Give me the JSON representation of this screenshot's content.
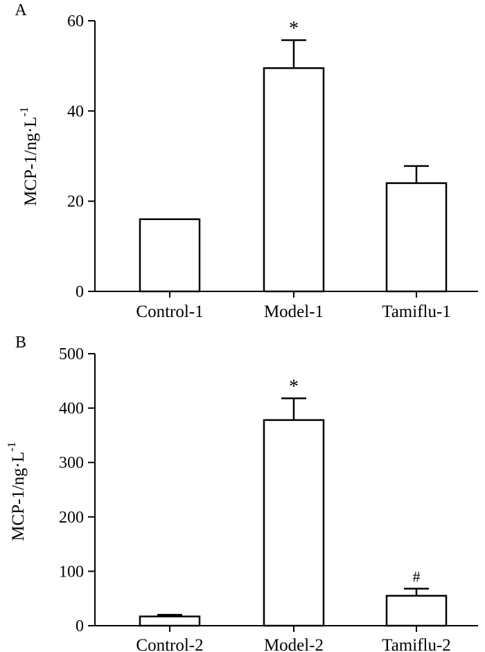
{
  "chart_data": [
    {
      "type": "bar",
      "panel": "A",
      "ylabel": "MCP-1/ng·L",
      "ylabel_sup": "-1",
      "ylim": [
        0,
        60
      ],
      "yticks": [
        0,
        20,
        40,
        60
      ],
      "categories": [
        "Control-1",
        "Model-1",
        "Tamiflu-1"
      ],
      "values": [
        16,
        49.5,
        24
      ],
      "errors": [
        0,
        6.2,
        3.8
      ],
      "annotations": [
        "",
        "*",
        ""
      ]
    },
    {
      "type": "bar",
      "panel": "B",
      "ylabel": "MCP-1/ng·L",
      "ylabel_sup": "-1",
      "ylim": [
        0,
        500
      ],
      "yticks": [
        0,
        100,
        200,
        300,
        400,
        500
      ],
      "categories": [
        "Control-2",
        "Model-2",
        "Tamiflu-2"
      ],
      "values": [
        17,
        378,
        55
      ],
      "errors": [
        3,
        40,
        13
      ],
      "annotations": [
        "",
        "*",
        "#"
      ]
    }
  ]
}
